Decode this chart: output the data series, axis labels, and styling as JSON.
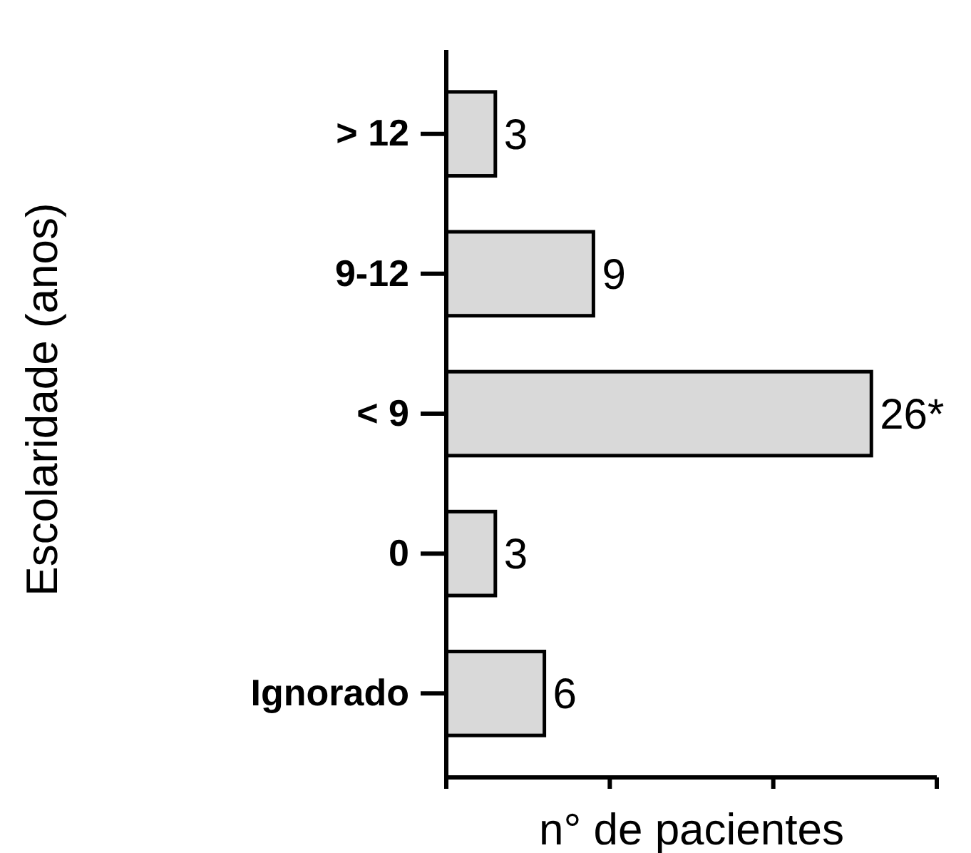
{
  "chart_data": {
    "type": "bar",
    "orientation": "horizontal",
    "xlabel": "n° de pacientes",
    "ylabel": "Escolaridade (anos)",
    "categories": [
      "> 12",
      "9-12",
      "< 9",
      "0",
      "Ignorado"
    ],
    "values": [
      3,
      9,
      26,
      3,
      6
    ],
    "value_labels": [
      "3",
      "9",
      "26*",
      "3",
      "6"
    ],
    "color": "#d9d9d9",
    "xlim": [
      0,
      30
    ],
    "xticks": [
      {
        "value": 0,
        "label": null
      },
      {
        "value": 10,
        "label": null
      },
      {
        "value": 20,
        "label": null
      },
      {
        "value": 30,
        "label": null
      }
    ],
    "tick_labels": "y"
  }
}
